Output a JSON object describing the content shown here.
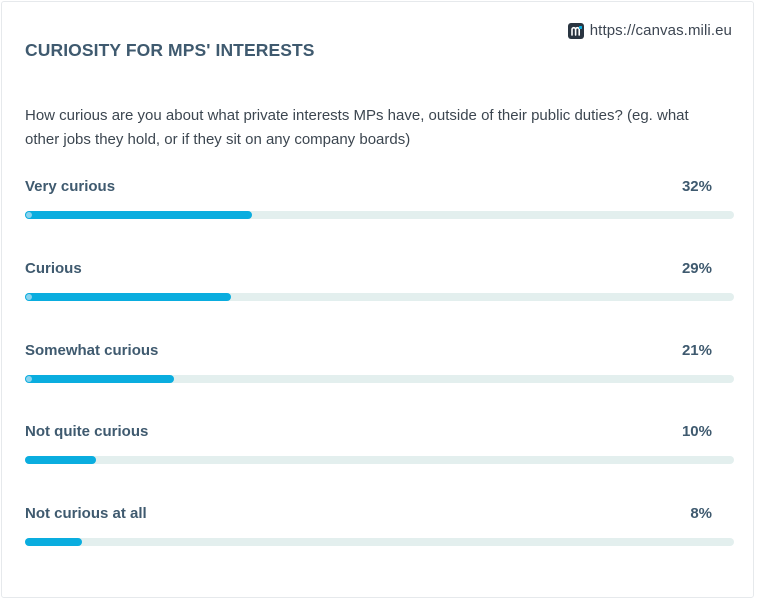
{
  "source": {
    "logo_icon": "mili-logo-icon",
    "url": "https://canvas.mili.eu"
  },
  "colors": {
    "accent": "#0aaddf",
    "track": "#e3efee",
    "title": "#3f5a6f",
    "text": "#3c4650"
  },
  "chart_data": {
    "type": "bar",
    "title": "CURIOSITY FOR MPS' INTERESTS",
    "subtitle": "How curious are you about what private interests MPs have, outside of their public duties? (eg. what other jobs they hold, or if they sit on any company boards)",
    "categories": [
      "Very curious",
      "Curious",
      "Somewhat curious",
      "Not quite curious",
      "Not curious at all"
    ],
    "values": [
      32,
      29,
      21,
      10,
      8
    ],
    "value_labels": [
      "32%",
      "29%",
      "21%",
      "10%",
      "8%"
    ],
    "unit": "%",
    "xlim": [
      0,
      100
    ],
    "grid": false,
    "legend": "none"
  }
}
